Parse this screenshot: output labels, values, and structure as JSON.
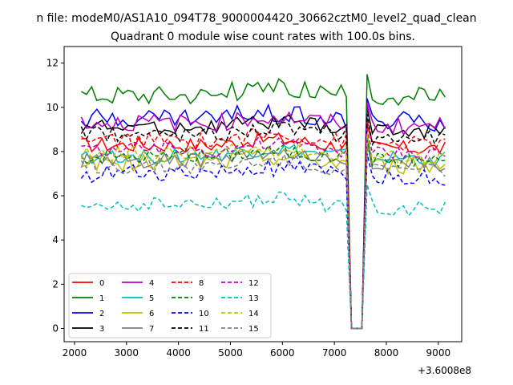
{
  "chart_data": {
    "type": "line",
    "suptitle": "n file: modeM0/AS1A10_094T78_9000004420_30662cztM0_level2_quad_clean",
    "title": "Quadrant 0 module wise count rates with 100.0s bins.",
    "xlabel": "",
    "ylabel": "",
    "x_offset_label": "+3.6008e8",
    "xlim": [
      1800,
      9450
    ],
    "ylim": [
      -0.6,
      12.75
    ],
    "xticks": [
      2000,
      3000,
      4000,
      5000,
      6000,
      7000,
      8000,
      9000
    ],
    "xtick_labels": [
      "2000",
      "3000",
      "4000",
      "5000",
      "6000",
      "7000",
      "8000",
      "9000"
    ],
    "yticks": [
      0,
      2,
      4,
      6,
      8,
      10,
      12
    ],
    "ytick_labels": [
      "0",
      "2",
      "4",
      "6",
      "8",
      "10",
      "12"
    ],
    "grid": false,
    "legend_position": "lower-left",
    "legend_ncol": 4,
    "x_start": 2130,
    "x_step": 100,
    "gap_start": 7330,
    "gap_end": 7530,
    "edge_before_gap": 7230,
    "edge_after_gap": 7630,
    "x_end": 9130,
    "series": [
      {
        "name": "0",
        "color": "#ff0000",
        "dash": "solid",
        "base": 8.3,
        "amp": 0.35
      },
      {
        "name": "1",
        "color": "#008000",
        "dash": "solid",
        "base": 10.6,
        "amp": 0.45
      },
      {
        "name": "2",
        "color": "#0000ff",
        "dash": "solid",
        "base": 9.5,
        "amp": 0.45
      },
      {
        "name": "3",
        "color": "#000000",
        "dash": "solid",
        "base": 9.1,
        "amp": 0.35
      },
      {
        "name": "4",
        "color": "#bf00bf",
        "dash": "solid",
        "base": 9.3,
        "amp": 0.4
      },
      {
        "name": "5",
        "color": "#00bfbf",
        "dash": "solid",
        "base": 7.8,
        "amp": 0.35
      },
      {
        "name": "6",
        "color": "#bfbf00",
        "dash": "solid",
        "base": 7.5,
        "amp": 0.4
      },
      {
        "name": "7",
        "color": "#808080",
        "dash": "solid",
        "base": 7.6,
        "amp": 0.35
      },
      {
        "name": "8",
        "color": "#ff0000",
        "dash": "dashed",
        "base": 8.5,
        "amp": 0.35
      },
      {
        "name": "9",
        "color": "#008000",
        "dash": "dashed",
        "base": 7.8,
        "amp": 0.35
      },
      {
        "name": "10",
        "color": "#0000ff",
        "dash": "dashed",
        "base": 7.0,
        "amp": 0.4
      },
      {
        "name": "11",
        "color": "#000000",
        "dash": "dashed",
        "base": 8.8,
        "amp": 0.35
      },
      {
        "name": "12",
        "color": "#bf00bf",
        "dash": "dashed",
        "base": 8.1,
        "amp": 0.35
      },
      {
        "name": "13",
        "color": "#00bfbf",
        "dash": "dashed",
        "base": 5.6,
        "amp": 0.35
      },
      {
        "name": "14",
        "color": "#bfbf00",
        "dash": "dashed",
        "base": 7.9,
        "amp": 0.35
      },
      {
        "name": "15",
        "color": "#808080",
        "dash": "dashed",
        "base": 7.3,
        "amp": 0.35
      }
    ]
  }
}
